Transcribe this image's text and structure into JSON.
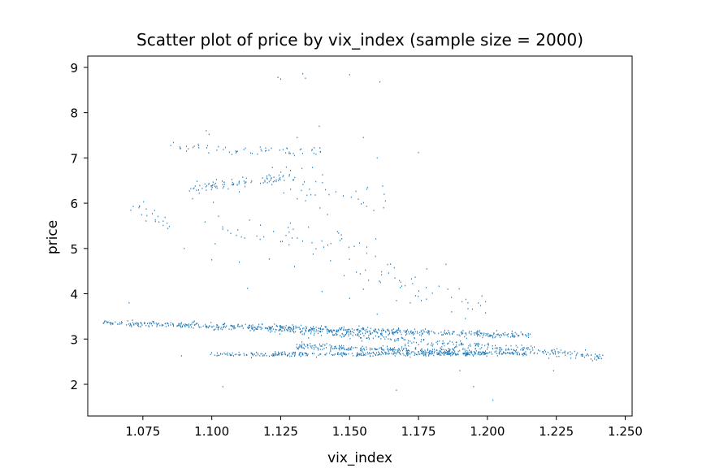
{
  "chart_data": {
    "type": "scatter",
    "title": "Scatter plot of price by vix_index (sample size = 2000)",
    "xlabel": "vix_index",
    "ylabel": "price",
    "xlim": [
      1.055,
      1.2525
    ],
    "ylim": [
      1.3,
      9.25
    ],
    "xticks": [
      "1.075",
      "1.100",
      "1.125",
      "1.150",
      "1.175",
      "1.200",
      "1.225",
      "1.250"
    ],
    "yticks": [
      "2",
      "3",
      "4",
      "5",
      "6",
      "7",
      "8",
      "9"
    ],
    "grid": false,
    "legend": "none",
    "marker_color": "#1f77b4",
    "sample_size": 2000,
    "clusters": [
      {
        "x0": 1.06,
        "x1": 1.215,
        "y0": 3.36,
        "y1": 3.08,
        "spread": 0.07,
        "n": 620
      },
      {
        "x0": 1.12,
        "x1": 1.242,
        "y0": 3.25,
        "y1": 2.6,
        "spread": 0.1,
        "n": 360
      },
      {
        "x0": 1.1,
        "x1": 1.215,
        "y0": 2.66,
        "y1": 2.68,
        "spread": 0.05,
        "n": 380
      },
      {
        "x0": 1.13,
        "x1": 1.2,
        "y0": 2.85,
        "y1": 2.68,
        "spread": 0.07,
        "n": 300
      },
      {
        "x0": 1.09,
        "x1": 1.13,
        "y0": 6.28,
        "y1": 6.6,
        "spread": 0.12,
        "n": 90
      },
      {
        "x0": 1.085,
        "x1": 1.14,
        "y0": 7.25,
        "y1": 7.1,
        "spread": 0.1,
        "n": 60
      },
      {
        "x0": 1.07,
        "x1": 1.085,
        "y0": 5.95,
        "y1": 5.5,
        "spread": 0.2,
        "n": 22
      },
      {
        "x0": 1.095,
        "x1": 1.16,
        "y0": 5.5,
        "y1": 5.0,
        "spread": 0.4,
        "n": 50
      },
      {
        "x0": 1.12,
        "x1": 1.165,
        "y0": 6.6,
        "y1": 6.0,
        "spread": 0.35,
        "n": 40
      },
      {
        "x0": 1.15,
        "x1": 1.2,
        "y0": 4.7,
        "y1": 3.7,
        "spread": 0.25,
        "n": 40
      }
    ],
    "points": [
      [
        1.124,
        8.78
      ],
      [
        1.125,
        8.74
      ],
      [
        1.133,
        8.86
      ],
      [
        1.134,
        8.76
      ],
      [
        1.15,
        8.84
      ],
      [
        1.161,
        8.68
      ],
      [
        1.139,
        7.7
      ],
      [
        1.098,
        7.6
      ],
      [
        1.099,
        7.52
      ],
      [
        1.131,
        7.45
      ],
      [
        1.155,
        7.45
      ],
      [
        1.175,
        7.12
      ],
      [
        1.07,
        3.8
      ],
      [
        1.195,
        1.95
      ],
      [
        1.202,
        1.65
      ],
      [
        1.104,
        1.95
      ],
      [
        1.167,
        1.87
      ],
      [
        1.089,
        2.63
      ],
      [
        1.113,
        4.12
      ],
      [
        1.14,
        4.05
      ],
      [
        1.163,
        6.05
      ],
      [
        1.185,
        4.65
      ],
      [
        1.178,
        4.55
      ],
      [
        1.198,
        3.95
      ],
      [
        1.19,
        2.3
      ],
      [
        1.224,
        2.3
      ],
      [
        1.09,
        5.0
      ],
      [
        1.1,
        4.75
      ],
      [
        1.11,
        4.7
      ],
      [
        1.13,
        4.6
      ],
      [
        1.148,
        4.4
      ],
      [
        1.155,
        4.1
      ],
      [
        1.167,
        3.85
      ],
      [
        1.172,
        3.8
      ],
      [
        1.176,
        3.85
      ],
      [
        1.187,
        3.6
      ],
      [
        1.192,
        3.45
      ],
      [
        1.16,
        3.55
      ],
      [
        1.15,
        3.9
      ],
      [
        1.145,
        6.25
      ],
      [
        1.16,
        7.0
      ],
      [
        1.11,
        6.25
      ],
      [
        1.093,
        6.1
      ],
      [
        1.125,
        5.15
      ],
      [
        1.142,
        5.75
      ],
      [
        1.147,
        5.3
      ]
    ]
  }
}
